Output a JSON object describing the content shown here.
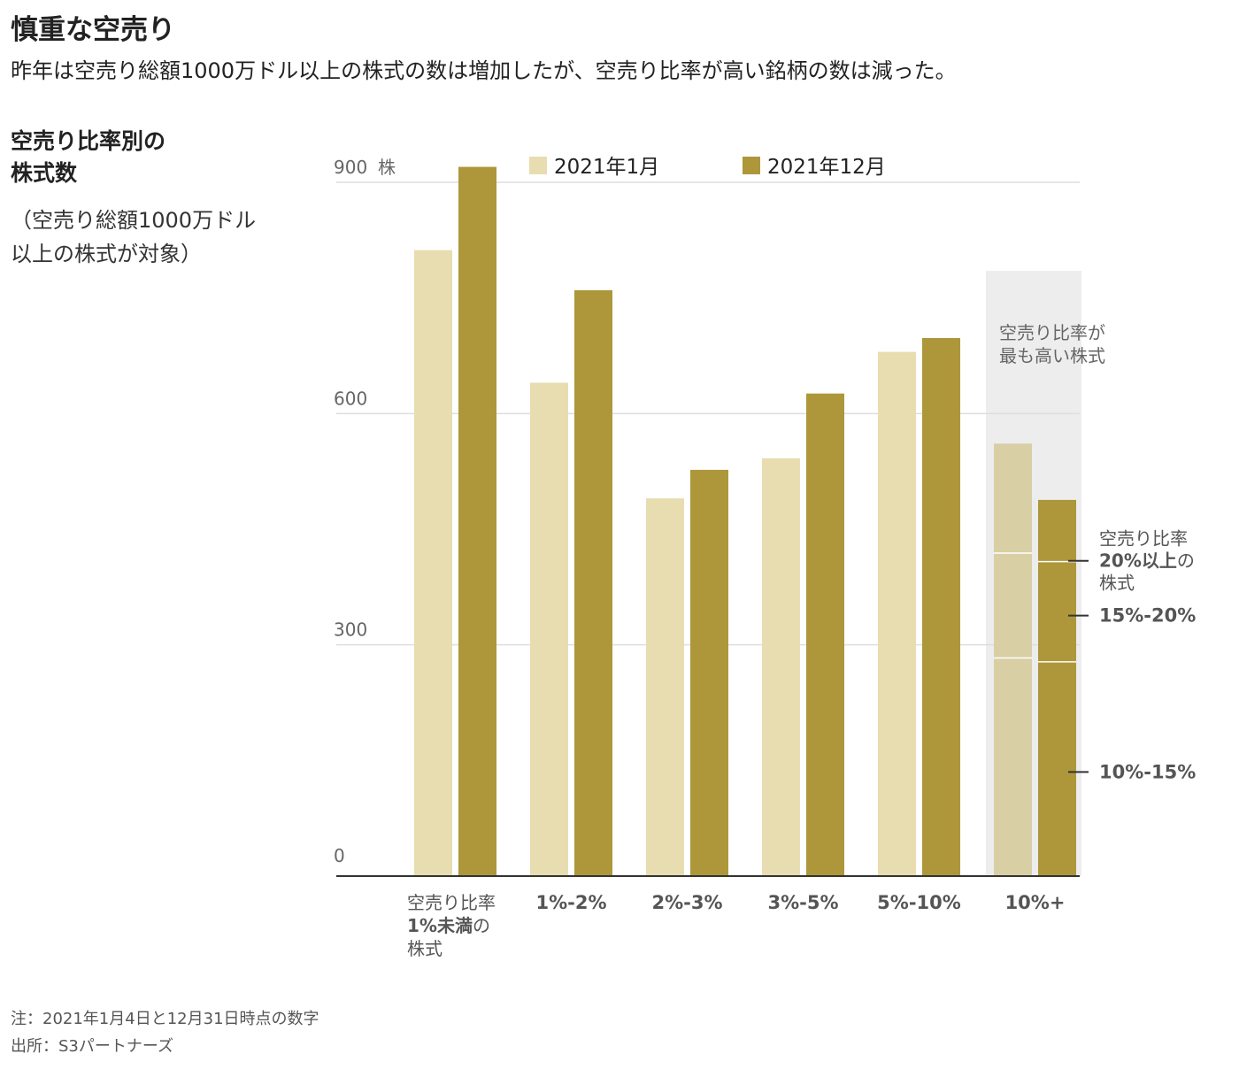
{
  "header": {
    "title": "慎重な空売り",
    "subtitle": "昨年は空売り総額1000万ドル以上の株式の数は増加したが、空売り比率が高い銘柄の数は減った。"
  },
  "chart_heading": {
    "line1": "空売り比率別の",
    "line2": "株式数",
    "note_line1": "（空売り総額1000万ドル",
    "note_line2": "以上の株式が対象）"
  },
  "footer": {
    "note": "注：2021年1月4日と12月31日時点の数字",
    "source": "出所：S3パートナーズ"
  },
  "colors": {
    "jan": "#e8ddb0",
    "dec": "#ad973a",
    "jan_highlight": "#d9cfa4",
    "highlight_band": "#ededed",
    "grid": "#dedede",
    "axis": "#333333"
  },
  "chart_data": {
    "type": "bar",
    "ylabel": "株",
    "ylim": [
      0,
      900
    ],
    "yticks": [
      {
        "value": 0,
        "label": "0"
      },
      {
        "value": 300,
        "label": "300"
      },
      {
        "value": 600,
        "label": "600"
      },
      {
        "value": 900,
        "label": "900"
      }
    ],
    "ylabel_unit": "株",
    "categories": [
      "空売り比率1%未満の株式",
      "1%-2%",
      "2%-3%",
      "3%-5%",
      "5%-10%",
      "10%+"
    ],
    "category_labels": [
      {
        "lines": [
          [
            {
              "t": "空売り比率",
              "b": false
            }
          ],
          [
            {
              "t": "1%未満",
              "b": true
            },
            {
              "t": "の",
              "b": false
            }
          ],
          [
            {
              "t": "株式",
              "b": false
            }
          ]
        ],
        "align": "left"
      },
      {
        "lines": [
          [
            {
              "t": "1%-2%",
              "b": true
            }
          ]
        ],
        "align": "center"
      },
      {
        "lines": [
          [
            {
              "t": "2%-3%",
              "b": true
            }
          ]
        ],
        "align": "center"
      },
      {
        "lines": [
          [
            {
              "t": "3%-5%",
              "b": true
            }
          ]
        ],
        "align": "center"
      },
      {
        "lines": [
          [
            {
              "t": "5%-10%",
              "b": true
            }
          ]
        ],
        "align": "center"
      },
      {
        "lines": [
          [
            {
              "t": "10%+",
              "b": true
            }
          ]
        ],
        "align": "center"
      }
    ],
    "series": [
      {
        "name": "2021年1月",
        "values": [
          812,
          640,
          490,
          542,
          680,
          561
        ]
      },
      {
        "name": "2021年12月",
        "values": [
          920,
          760,
          527,
          626,
          698,
          488
        ]
      }
    ],
    "stacked_breakdown": {
      "category": "10%+",
      "segments": [
        "10%-15%",
        "15%-20%",
        "20%以上"
      ],
      "series": [
        {
          "name": "2021年1月",
          "values": [
            283,
            136,
            142
          ]
        },
        {
          "name": "2021年12月",
          "values": [
            278,
            130,
            80
          ]
        }
      ]
    },
    "highlight": {
      "category": "10%+",
      "label_line1": "空売り比率が",
      "label_line2": "最も高い株式"
    },
    "segment_labels": [
      {
        "value": 409,
        "lines": [
          [
            {
              "t": "空売り比率",
              "b": false
            }
          ],
          [
            {
              "t": "20%以上",
              "b": true
            },
            {
              "t": "の",
              "b": false
            }
          ],
          [
            {
              "t": "株式",
              "b": false
            }
          ]
        ]
      },
      {
        "value": 338,
        "lines": [
          [
            {
              "t": "15%-20%",
              "b": true
            }
          ]
        ]
      },
      {
        "value": 135,
        "lines": [
          [
            {
              "t": "10%-15%",
              "b": true
            }
          ]
        ]
      }
    ],
    "legend_position": "top",
    "grid": true
  }
}
